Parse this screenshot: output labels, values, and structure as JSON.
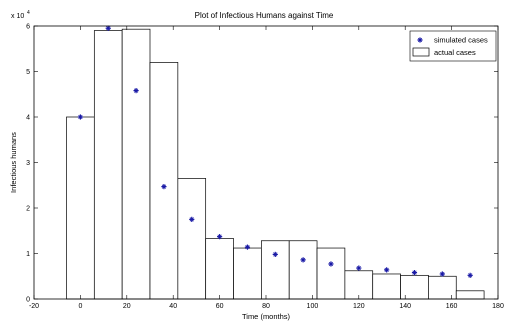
{
  "chart_data": {
    "type": "bar",
    "title": "Plot of Infectious Humans against Time",
    "xlabel": "Time (months)",
    "ylabel": "Infectious humans",
    "y_multiplier_label": "x 10",
    "y_multiplier_exponent": "4",
    "xlim": [
      -20,
      180
    ],
    "ylim": [
      0,
      6
    ],
    "xticks": [
      -20,
      0,
      20,
      40,
      60,
      80,
      100,
      120,
      140,
      160,
      180
    ],
    "xtick_labels": [
      "-20",
      "0",
      "20",
      "40",
      "60",
      "80",
      "100",
      "120",
      "140",
      "160",
      "180"
    ],
    "yticks": [
      0,
      1,
      2,
      3,
      4,
      5,
      6
    ],
    "ytick_labels": [
      "0",
      "1",
      "2",
      "3",
      "4",
      "5",
      "6"
    ],
    "y_units_note": "values in units of 10^4",
    "bar_width": 12,
    "series": [
      {
        "name": "actual cases",
        "kind": "bar",
        "x": [
          0,
          12,
          24,
          36,
          48,
          60,
          72,
          84,
          96,
          108,
          120,
          132,
          144,
          156,
          168
        ],
        "values": [
          4.0,
          5.9,
          5.93,
          5.2,
          2.65,
          1.33,
          1.12,
          1.28,
          1.28,
          1.12,
          0.62,
          0.55,
          0.52,
          0.5,
          0.18
        ]
      },
      {
        "name": "simulated cases",
        "kind": "scatter",
        "marker": "star",
        "color": "#1a1aa6",
        "x": [
          0,
          12,
          24,
          36,
          48,
          60,
          72,
          84,
          96,
          108,
          120,
          132,
          144,
          156,
          168
        ],
        "values": [
          4.0,
          5.95,
          4.58,
          2.47,
          1.75,
          1.37,
          1.14,
          0.98,
          0.86,
          0.77,
          0.68,
          0.64,
          0.58,
          0.55,
          0.52
        ]
      }
    ],
    "legend_position": "top-right",
    "grid": false
  }
}
